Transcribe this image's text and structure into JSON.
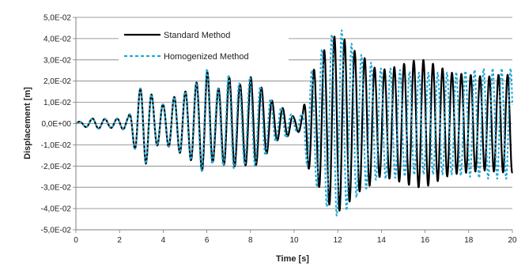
{
  "chart_data": {
    "type": "line",
    "xlabel": "Time [s]",
    "ylabel": "Displacement [m]",
    "xlim": [
      0,
      20
    ],
    "ylim": [
      -0.05,
      0.05
    ],
    "x_ticks": [
      0,
      2,
      4,
      6,
      8,
      10,
      12,
      14,
      16,
      18,
      20
    ],
    "x_tick_labels": [
      "0",
      "2",
      "4",
      "6",
      "8",
      "10",
      "12",
      "14",
      "16",
      "18",
      "20"
    ],
    "y_ticks": [
      -0.05,
      -0.04,
      -0.03,
      -0.02,
      -0.01,
      0,
      0.01,
      0.02,
      0.03,
      0.04,
      0.05
    ],
    "y_tick_labels": [
      "-5,0E-02",
      "-4,0E-02",
      "-3,0E-02",
      "-2,0E-02",
      "-1,0E-02",
      "0,0E+00",
      "1,0E-02",
      "2,0E-02",
      "3,0E-02",
      "4,0E-02",
      "5,0E-02"
    ],
    "grid": "horizontal",
    "legend_position": "top-left",
    "series": [
      {
        "name": "Standard Method",
        "color": "#000000",
        "style": "solid",
        "envelope": {
          "t": [
            0,
            0.8,
            1.6,
            2.4,
            2.8,
            3.2,
            3.6,
            4.0,
            4.4,
            5.0,
            5.6,
            6.0,
            6.4,
            7.0,
            7.6,
            8.0,
            8.6,
            9.2,
            9.6,
            10.0,
            10.4,
            10.6,
            11.0,
            11.4,
            11.8,
            12.2,
            12.6,
            13.0,
            13.4,
            13.8,
            14.4,
            15.0,
            15.6,
            16.0,
            16.6,
            17.2,
            18.0,
            18.8,
            19.4,
            20.0
          ],
          "amp": [
            0.0005,
            0.0025,
            0.002,
            0.003,
            0.015,
            0.019,
            0.011,
            0.009,
            0.012,
            0.015,
            0.02,
            0.025,
            0.015,
            0.022,
            0.018,
            0.022,
            0.016,
            0.008,
            0.007,
            0.003,
            0.005,
            0.02,
            0.027,
            0.035,
            0.041,
            0.041,
            0.036,
            0.032,
            0.03,
            0.025,
            0.026,
            0.028,
            0.03,
            0.03,
            0.027,
            0.024,
            0.023,
            0.022,
            0.023,
            0.023
          ]
        },
        "frequency_hz": [
          [
            0,
            1.6
          ],
          [
            2.5,
            1.9
          ],
          [
            10.5,
            2.1
          ],
          [
            20,
            2.4
          ]
        ]
      },
      {
        "name": "Homogenized Method",
        "color": "#1fa8d8",
        "style": "dashed",
        "envelope": {
          "t": [
            0,
            0.8,
            1.6,
            2.4,
            2.8,
            3.2,
            3.6,
            4.0,
            4.4,
            5.0,
            5.6,
            6.0,
            6.4,
            7.0,
            7.6,
            8.0,
            8.6,
            9.2,
            9.6,
            10.0,
            10.4,
            10.6,
            11.0,
            11.4,
            11.8,
            12.2,
            12.6,
            13.0,
            13.4,
            13.8,
            14.4,
            15.0,
            15.6,
            16.0,
            16.6,
            17.2,
            18.0,
            18.8,
            19.4,
            20.0
          ],
          "amp": [
            0.0005,
            0.0025,
            0.002,
            0.003,
            0.015,
            0.019,
            0.011,
            0.009,
            0.012,
            0.015,
            0.02,
            0.026,
            0.015,
            0.023,
            0.018,
            0.022,
            0.016,
            0.008,
            0.007,
            0.003,
            0.005,
            0.021,
            0.029,
            0.038,
            0.043,
            0.044,
            0.038,
            0.033,
            0.03,
            0.026,
            0.026,
            0.025,
            0.024,
            0.024,
            0.024,
            0.024,
            0.025,
            0.026,
            0.026,
            0.026
          ]
        },
        "frequency_hz": [
          [
            0,
            1.6
          ],
          [
            2.5,
            1.9
          ],
          [
            10.5,
            2.15
          ],
          [
            20,
            2.45
          ]
        ]
      }
    ]
  }
}
